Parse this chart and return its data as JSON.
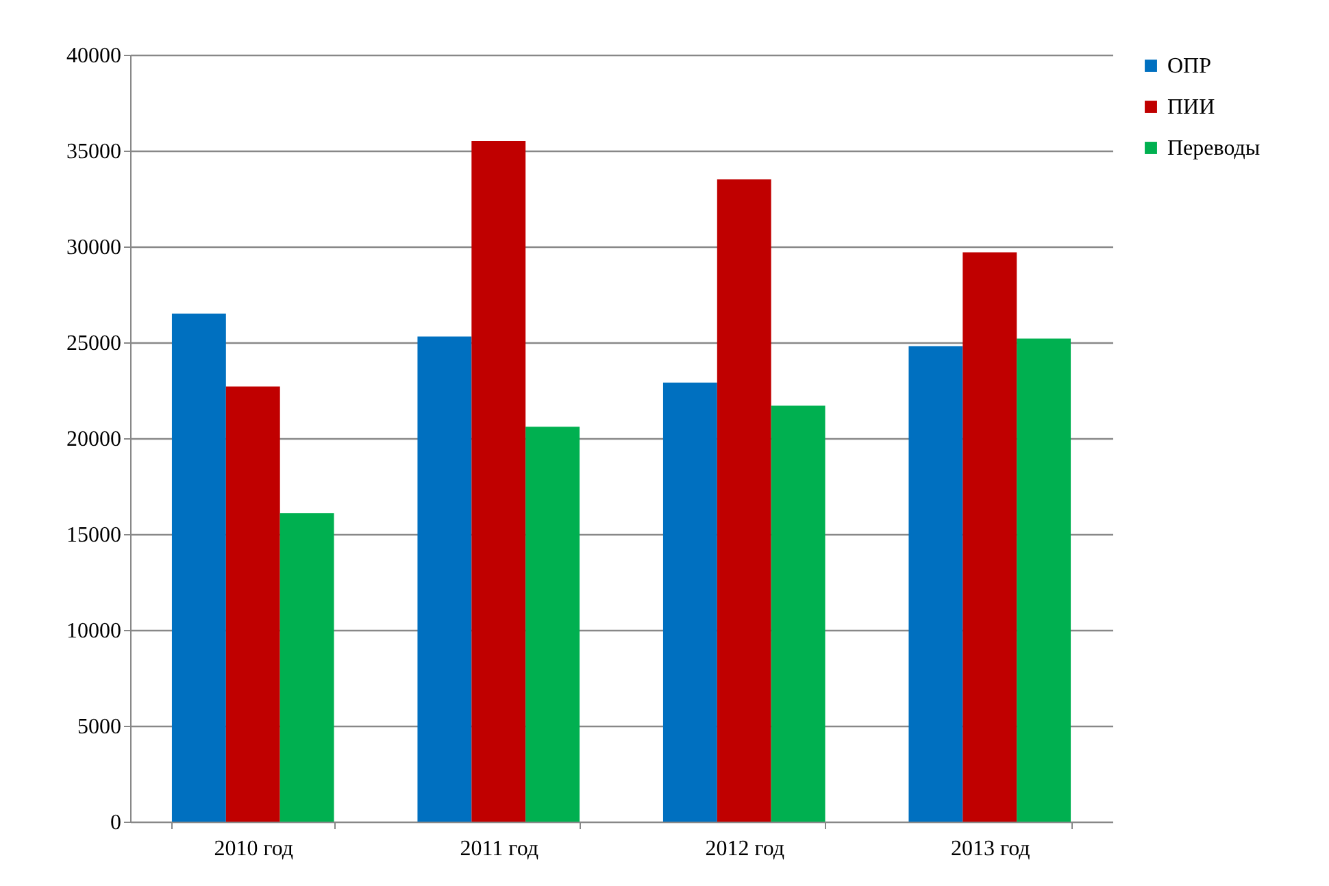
{
  "chart_data": {
    "type": "bar",
    "categories": [
      "2010 год",
      "2011 год",
      "2012 год",
      "2013 год"
    ],
    "series": [
      {
        "name": "ОПР",
        "color": "#0070c0",
        "values": [
          26500,
          25300,
          22900,
          24800
        ]
      },
      {
        "name": "ПИИ",
        "color": "#c00000",
        "values": [
          22700,
          35500,
          33500,
          29700
        ]
      },
      {
        "name": "Переводы",
        "color": "#00b050",
        "values": [
          16100,
          20600,
          21700,
          25200
        ]
      }
    ],
    "ylim": [
      0,
      40000
    ],
    "yticks": [
      0,
      5000,
      10000,
      15000,
      20000,
      25000,
      30000,
      35000,
      40000
    ],
    "grid": "y",
    "legend": "right"
  }
}
